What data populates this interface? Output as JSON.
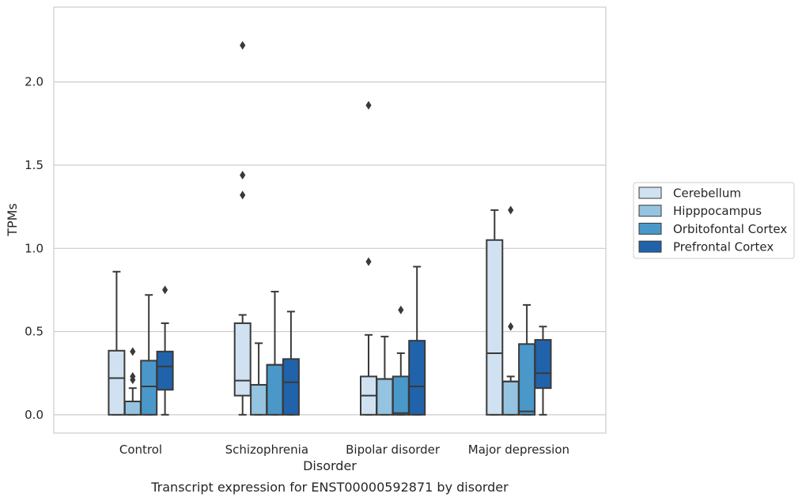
{
  "chart_data": {
    "type": "boxplot",
    "title": "Transcript expression for ENST00000592871 by disorder",
    "xlabel": "Disorder",
    "ylabel": "TPMs",
    "ylim": [
      -0.11,
      2.45
    ],
    "yticks": [
      0.0,
      0.5,
      1.0,
      1.5,
      2.0
    ],
    "ytick_labels": [
      "0.0",
      "0.5",
      "1.0",
      "1.5",
      "2.0"
    ],
    "grid": "horizontal",
    "legend_position": "right",
    "categories": [
      "Control",
      "Schizophrenia",
      "Bipolar disorder",
      "Major depression"
    ],
    "series": [
      {
        "name": "Cerebellum",
        "color": "#d0e1f2",
        "boxes": [
          {
            "whislo": 0.0,
            "q1": 0.0,
            "med": 0.22,
            "q3": 0.385,
            "whishi": 0.86,
            "fliers": []
          },
          {
            "whislo": 0.0,
            "q1": 0.115,
            "med": 0.205,
            "q3": 0.55,
            "whishi": 0.6,
            "fliers": [
              1.32,
              1.44,
              2.22
            ]
          },
          {
            "whislo": 0.0,
            "q1": 0.0,
            "med": 0.115,
            "q3": 0.23,
            "whishi": 0.48,
            "fliers": [
              0.92,
              1.86
            ]
          },
          {
            "whislo": 0.0,
            "q1": 0.0,
            "med": 0.37,
            "q3": 1.05,
            "whishi": 1.23,
            "fliers": []
          }
        ]
      },
      {
        "name": "Hipppocampus",
        "color": "#94c4df",
        "boxes": [
          {
            "whislo": 0.0,
            "q1": 0.0,
            "med": 0.08,
            "q3": 0.08,
            "whishi": 0.16,
            "fliers": [
              0.21,
              0.23,
              0.38
            ]
          },
          {
            "whislo": 0.0,
            "q1": 0.0,
            "med": 0.18,
            "q3": 0.18,
            "whishi": 0.43,
            "fliers": []
          },
          {
            "whislo": 0.0,
            "q1": 0.0,
            "med": 0.215,
            "q3": 0.215,
            "whishi": 0.47,
            "fliers": []
          },
          {
            "whislo": 0.0,
            "q1": 0.0,
            "med": 0.2,
            "q3": 0.2,
            "whishi": 0.23,
            "fliers": [
              0.53,
              1.23
            ]
          }
        ]
      },
      {
        "name": "Orbitofontal Cortex",
        "color": "#4a98c9",
        "boxes": [
          {
            "whislo": 0.0,
            "q1": 0.0,
            "med": 0.17,
            "q3": 0.325,
            "whishi": 0.72,
            "fliers": []
          },
          {
            "whislo": 0.0,
            "q1": 0.0,
            "med": 0.3,
            "q3": 0.3,
            "whishi": 0.74,
            "fliers": []
          },
          {
            "whislo": 0.0,
            "q1": 0.0,
            "med": 0.01,
            "q3": 0.23,
            "whishi": 0.37,
            "fliers": [
              0.63
            ]
          },
          {
            "whislo": 0.0,
            "q1": 0.0,
            "med": 0.02,
            "q3": 0.425,
            "whishi": 0.66,
            "fliers": []
          }
        ]
      },
      {
        "name": "Prefrontal Cortex",
        "color": "#2163aa",
        "boxes": [
          {
            "whislo": 0.0,
            "q1": 0.15,
            "med": 0.29,
            "q3": 0.38,
            "whishi": 0.55,
            "fliers": [
              0.75
            ]
          },
          {
            "whislo": 0.0,
            "q1": 0.0,
            "med": 0.195,
            "q3": 0.335,
            "whishi": 0.62,
            "fliers": []
          },
          {
            "whislo": 0.0,
            "q1": 0.0,
            "med": 0.17,
            "q3": 0.445,
            "whishi": 0.89,
            "fliers": []
          },
          {
            "whislo": 0.0,
            "q1": 0.16,
            "med": 0.25,
            "q3": 0.45,
            "whishi": 0.53,
            "fliers": []
          }
        ]
      }
    ]
  }
}
